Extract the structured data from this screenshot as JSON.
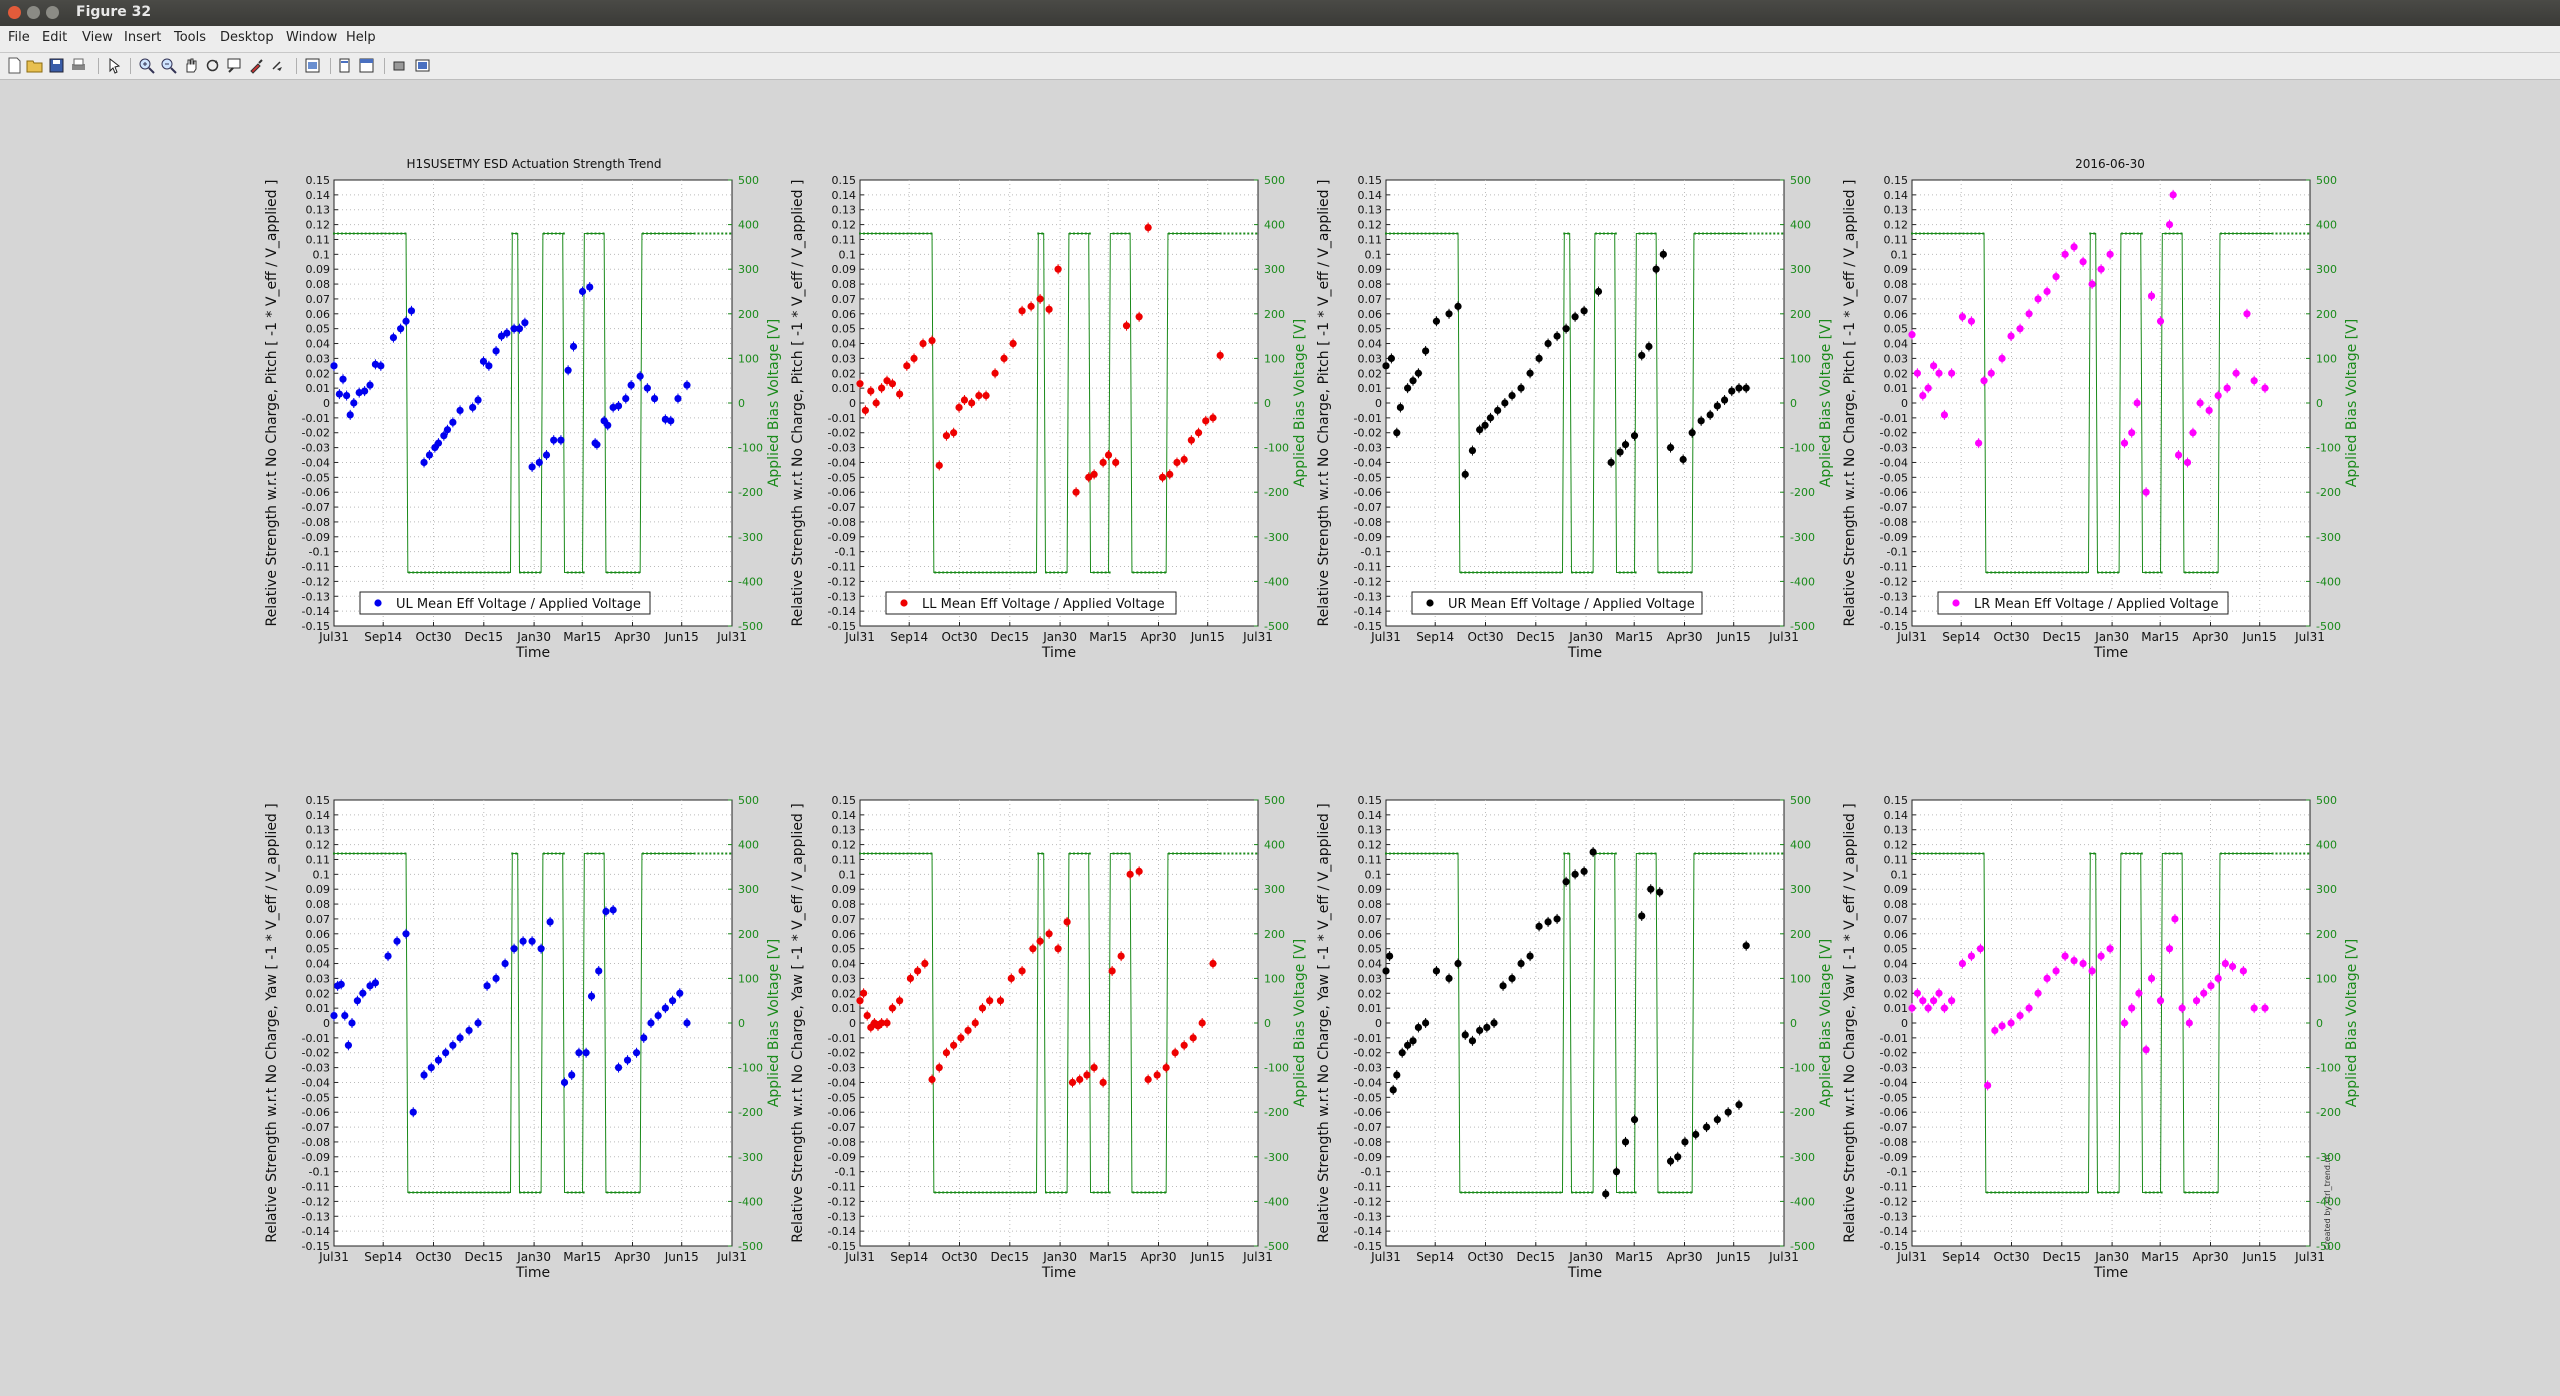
{
  "window": {
    "title": "Figure 32"
  },
  "menu": [
    "File",
    "Edit",
    "View",
    "Insert",
    "Tools",
    "Desktop",
    "Window",
    "Help"
  ],
  "toolbar": [
    "new-figure-icon",
    "open-icon",
    "save-icon",
    "print-icon",
    "pointer-icon",
    "zoom-in-icon",
    "zoom-out-icon",
    "pan-icon",
    "rotate-icon",
    "data-cursor-icon",
    "brush-icon",
    "link-icon",
    "colorbar-icon",
    "legend-icon",
    "hide-tools-icon",
    "dock-icon"
  ],
  "figure": {
    "suptitle": "H1SUSETMY ESD Actuation Strength Trend",
    "date": "2016-06-30",
    "side_note": "Created by ctrl_trend.m"
  },
  "chart_data": [
    {
      "type": "scatter",
      "row": "Pitch",
      "legend": "UL Mean Eff Voltage / Applied Voltage",
      "color": "#0000ee",
      "xlabel": "Time",
      "ylabel": "Relative Strength w.r.t No Charge, Pitch [ -1 * V_eff / V_applied ]",
      "y2label": "Applied Bias Voltage [V]",
      "xticks": [
        "Jul31",
        "Sep14",
        "Oct30",
        "Dec15",
        "Jan30",
        "Mar15",
        "Apr30",
        "Jun15",
        "Jul31"
      ],
      "ylim": [
        -0.15,
        0.15
      ],
      "y2lim": [
        -500,
        500
      ],
      "x": [
        0,
        3,
        5,
        7,
        9,
        11,
        14,
        17,
        20,
        23,
        26,
        33,
        37,
        40,
        43,
        50,
        53,
        56,
        58,
        61,
        63,
        66,
        70,
        77,
        80,
        83,
        86,
        90,
        93,
        96,
        100,
        103,
        106,
        110,
        114,
        118,
        122,
        126,
        130,
        133,
        138,
        142,
        145,
        146,
        150,
        152,
        155,
        158,
        162,
        165,
        170,
        174,
        178,
        184,
        187,
        191,
        196
      ],
      "y": [
        0.025,
        0.006,
        0.016,
        0.005,
        -0.008,
        0.0,
        0.007,
        0.008,
        0.012,
        0.026,
        0.025,
        0.044,
        0.05,
        0.055,
        0.062,
        -0.04,
        -0.035,
        -0.03,
        -0.027,
        -0.022,
        -0.018,
        -0.013,
        -0.005,
        -0.003,
        0.002,
        0.028,
        0.025,
        0.035,
        0.045,
        0.047,
        0.05,
        0.05,
        0.054,
        -0.043,
        -0.04,
        -0.035,
        -0.025,
        -0.025,
        0.022,
        0.038,
        0.075,
        0.078,
        -0.027,
        -0.028,
        -0.012,
        -0.015,
        -0.003,
        -0.002,
        0.003,
        0.012,
        0.018,
        0.01,
        0.003,
        -0.011,
        -0.012,
        0.003,
        0.012
      ]
    },
    {
      "type": "scatter",
      "row": "Pitch",
      "legend": "LL Mean Eff Voltage / Applied Voltage",
      "color": "#ee0000",
      "xlabel": "Time",
      "ylabel": "Relative Strength w.r.t No Charge, Pitch [ -1 * V_eff / V_applied ]",
      "y2label": "Applied Bias Voltage [V]",
      "xticks": [
        "Jul31",
        "Sep14",
        "Oct30",
        "Dec15",
        "Jan30",
        "Mar15",
        "Apr30",
        "Jun15",
        "Jul31"
      ],
      "ylim": [
        -0.15,
        0.15
      ],
      "y2lim": [
        -500,
        500
      ],
      "x": [
        0,
        3,
        6,
        9,
        12,
        15,
        18,
        22,
        26,
        30,
        35,
        40,
        44,
        48,
        52,
        55,
        58,
        62,
        66,
        70,
        75,
        80,
        85,
        90,
        95,
        100,
        105,
        110,
        120,
        127,
        130,
        135,
        138,
        142,
        148,
        155,
        160,
        168,
        172,
        176,
        180,
        184,
        188,
        192,
        196,
        200
      ],
      "y": [
        0.013,
        -0.005,
        0.008,
        0.0,
        0.01,
        0.015,
        0.013,
        0.006,
        0.025,
        0.03,
        0.04,
        0.042,
        -0.042,
        -0.022,
        -0.02,
        -0.003,
        0.002,
        0.0,
        0.005,
        0.005,
        0.02,
        0.03,
        0.04,
        0.062,
        0.065,
        0.07,
        0.063,
        0.09,
        -0.06,
        -0.05,
        -0.048,
        -0.04,
        -0.035,
        -0.04,
        0.052,
        0.058,
        0.118,
        -0.05,
        -0.048,
        -0.04,
        -0.038,
        -0.025,
        -0.02,
        -0.012,
        -0.01,
        0.032
      ]
    },
    {
      "type": "scatter",
      "row": "Pitch",
      "legend": "UR Mean Eff Voltage / Applied Voltage",
      "color": "#000000",
      "xlabel": "Time",
      "ylabel": "Relative Strength w.r.t No Charge, Pitch [ -1 * V_eff / V_applied ]",
      "y2label": "Applied Bias Voltage [V]",
      "xticks": [
        "Jul31",
        "Sep14",
        "Oct30",
        "Dec15",
        "Jan30",
        "Mar15",
        "Apr30",
        "Jun15",
        "Jul31"
      ],
      "ylim": [
        -0.15,
        0.15
      ],
      "y2lim": [
        -500,
        500
      ],
      "x": [
        0,
        3,
        6,
        8,
        12,
        15,
        18,
        22,
        28,
        35,
        40,
        44,
        48,
        52,
        55,
        58,
        62,
        66,
        70,
        75,
        80,
        85,
        90,
        95,
        100,
        105,
        110,
        118,
        125,
        130,
        133,
        138,
        142,
        146,
        150,
        154,
        158,
        165,
        170,
        175,
        180,
        184,
        188,
        192,
        196,
        200
      ],
      "y": [
        0.025,
        0.03,
        -0.02,
        -0.003,
        0.01,
        0.015,
        0.02,
        0.035,
        0.055,
        0.06,
        0.065,
        -0.048,
        -0.032,
        -0.018,
        -0.015,
        -0.01,
        -0.005,
        0.0,
        0.005,
        0.01,
        0.02,
        0.03,
        0.04,
        0.045,
        0.05,
        0.058,
        0.062,
        0.075,
        -0.04,
        -0.033,
        -0.028,
        -0.022,
        0.032,
        0.038,
        0.09,
        0.1,
        -0.03,
        -0.038,
        -0.02,
        -0.012,
        -0.008,
        -0.002,
        0.002,
        0.008,
        0.01,
        0.01
      ]
    },
    {
      "type": "scatter",
      "row": "Pitch",
      "legend": "LR Mean Eff Voltage / Applied Voltage",
      "color": "#ff00ff",
      "xlabel": "Time",
      "ylabel": "Relative Strength w.r.t No Charge, Pitch [ -1 * V_eff / V_applied ]",
      "y2label": "Applied Bias Voltage [V]",
      "xticks": [
        "Jul31",
        "Sep14",
        "Oct30",
        "Dec15",
        "Jan30",
        "Mar15",
        "Apr30",
        "Jun15",
        "Jul31"
      ],
      "ylim": [
        -0.15,
        0.15
      ],
      "y2lim": [
        -500,
        500
      ],
      "x": [
        0,
        3,
        6,
        9,
        12,
        15,
        18,
        22,
        28,
        33,
        37,
        40,
        44,
        50,
        55,
        60,
        65,
        70,
        75,
        80,
        85,
        90,
        95,
        100,
        105,
        110,
        118,
        122,
        125,
        130,
        133,
        138,
        143,
        145,
        148,
        153,
        156,
        160,
        165,
        170,
        175,
        180,
        186,
        190,
        196
      ],
      "y": [
        0.046,
        0.02,
        0.005,
        0.01,
        0.025,
        0.02,
        -0.008,
        0.02,
        0.058,
        0.055,
        -0.027,
        0.015,
        0.02,
        0.03,
        0.045,
        0.05,
        0.06,
        0.07,
        0.075,
        0.085,
        0.1,
        0.105,
        0.095,
        0.08,
        0.09,
        0.1,
        -0.027,
        -0.02,
        0.0,
        -0.06,
        0.072,
        0.055,
        0.12,
        0.14,
        -0.035,
        -0.04,
        -0.02,
        0.0,
        -0.005,
        0.005,
        0.01,
        0.02,
        0.06,
        0.015,
        0.01
      ]
    },
    {
      "type": "scatter",
      "row": "Yaw",
      "legend": "",
      "color": "#0000ee",
      "xlabel": "Time",
      "ylabel": "Relative Strength w.r.t No Charge, Yaw [ -1 * V_eff / V_applied ]",
      "y2label": "Applied Bias Voltage [V]",
      "xticks": [
        "Jul31",
        "Sep14",
        "Oct30",
        "Dec15",
        "Jan30",
        "Mar15",
        "Apr30",
        "Jun15",
        "Jul31"
      ],
      "ylim": [
        -0.15,
        0.15
      ],
      "y2lim": [
        -500,
        500
      ],
      "x": [
        0,
        2,
        4,
        6,
        8,
        10,
        13,
        16,
        20,
        23,
        30,
        35,
        40,
        44,
        50,
        54,
        58,
        62,
        66,
        70,
        75,
        80,
        85,
        90,
        95,
        100,
        105,
        110,
        115,
        120,
        128,
        132,
        136,
        140,
        143,
        147,
        151,
        155,
        158,
        163,
        168,
        172,
        176,
        180,
        184,
        188,
        192,
        196
      ],
      "y": [
        0.005,
        0.025,
        0.026,
        0.005,
        -0.015,
        0.0,
        0.015,
        0.02,
        0.025,
        0.027,
        0.045,
        0.055,
        0.06,
        -0.06,
        -0.035,
        -0.03,
        -0.025,
        -0.02,
        -0.015,
        -0.01,
        -0.005,
        0.0,
        0.025,
        0.03,
        0.04,
        0.05,
        0.055,
        0.055,
        0.05,
        0.068,
        -0.04,
        -0.035,
        -0.02,
        -0.02,
        0.018,
        0.035,
        0.075,
        0.076,
        -0.03,
        -0.025,
        -0.02,
        -0.01,
        0.0,
        0.005,
        0.01,
        0.015,
        0.02,
        0.0
      ]
    },
    {
      "type": "scatter",
      "row": "Yaw",
      "legend": "",
      "color": "#ee0000",
      "xlabel": "Time",
      "ylabel": "Relative Strength w.r.t No Charge, Yaw [ -1 * V_eff / V_applied ]",
      "y2label": "Applied Bias Voltage [V]",
      "xticks": [
        "Jul31",
        "Sep14",
        "Oct30",
        "Dec15",
        "Jan30",
        "Mar15",
        "Apr30",
        "Jun15",
        "Jul31"
      ],
      "ylim": [
        -0.15,
        0.15
      ],
      "y2lim": [
        -500,
        500
      ],
      "x": [
        0,
        2,
        4,
        6,
        8,
        10,
        12,
        15,
        18,
        22,
        28,
        32,
        36,
        40,
        44,
        48,
        52,
        56,
        60,
        64,
        68,
        72,
        78,
        84,
        90,
        96,
        100,
        105,
        110,
        115,
        118,
        122,
        126,
        130,
        135,
        140,
        145,
        150,
        155,
        160,
        165,
        170,
        175,
        180,
        185,
        190,
        196
      ],
      "y": [
        0.015,
        0.02,
        0.005,
        -0.003,
        0.0,
        -0.002,
        0.0,
        0.0,
        0.01,
        0.015,
        0.03,
        0.035,
        0.04,
        -0.038,
        -0.03,
        -0.02,
        -0.015,
        -0.01,
        -0.005,
        0.0,
        0.01,
        0.015,
        0.015,
        0.03,
        0.035,
        0.05,
        0.055,
        0.06,
        0.05,
        0.068,
        -0.04,
        -0.038,
        -0.035,
        -0.03,
        -0.04,
        0.035,
        0.045,
        0.1,
        0.102,
        -0.038,
        -0.035,
        -0.03,
        -0.02,
        -0.015,
        -0.01,
        0.0,
        0.04
      ]
    },
    {
      "type": "scatter",
      "row": "Yaw",
      "legend": "",
      "color": "#000000",
      "xlabel": "Time",
      "ylabel": "Relative Strength w.r.t No Charge, Yaw [ -1 * V_eff / V_applied ]",
      "y2label": "Applied Bias Voltage [V]",
      "xticks": [
        "Jul31",
        "Sep14",
        "Oct30",
        "Dec15",
        "Jan30",
        "Mar15",
        "Apr30",
        "Jun15",
        "Jul31"
      ],
      "ylim": [
        -0.15,
        0.15
      ],
      "y2lim": [
        -500,
        500
      ],
      "x": [
        0,
        2,
        4,
        6,
        9,
        12,
        15,
        18,
        22,
        28,
        35,
        40,
        44,
        48,
        52,
        56,
        60,
        65,
        70,
        75,
        80,
        85,
        90,
        95,
        100,
        105,
        110,
        115,
        122,
        128,
        133,
        138,
        142,
        147,
        152,
        158,
        162,
        166,
        172,
        178,
        184,
        190,
        196,
        200
      ],
      "y": [
        0.035,
        0.045,
        -0.045,
        -0.035,
        -0.02,
        -0.015,
        -0.012,
        -0.003,
        0.0,
        0.035,
        0.03,
        0.04,
        -0.008,
        -0.012,
        -0.005,
        -0.003,
        0.0,
        0.025,
        0.03,
        0.04,
        0.045,
        0.065,
        0.068,
        0.07,
        0.095,
        0.1,
        0.102,
        0.115,
        -0.115,
        -0.1,
        -0.08,
        -0.065,
        0.072,
        0.09,
        0.088,
        -0.093,
        -0.09,
        -0.08,
        -0.075,
        -0.07,
        -0.065,
        -0.06,
        -0.055,
        0.052
      ]
    },
    {
      "type": "scatter",
      "row": "Yaw",
      "legend": "",
      "color": "#ff00ff",
      "xlabel": "Time",
      "ylabel": "Relative Strength w.r.t No Charge, Yaw [ -1 * V_eff / V_applied ]",
      "y2label": "Applied Bias Voltage [V]",
      "xticks": [
        "Jul31",
        "Sep14",
        "Oct30",
        "Dec15",
        "Jan30",
        "Mar15",
        "Apr30",
        "Jun15",
        "Jul31"
      ],
      "ylim": [
        -0.15,
        0.15
      ],
      "y2lim": [
        -500,
        500
      ],
      "x": [
        0,
        3,
        6,
        9,
        12,
        15,
        18,
        22,
        28,
        33,
        38,
        42,
        46,
        50,
        55,
        60,
        65,
        70,
        75,
        80,
        85,
        90,
        95,
        100,
        105,
        110,
        118,
        122,
        126,
        130,
        133,
        138,
        143,
        146,
        150,
        154,
        158,
        162,
        166,
        170,
        174,
        178,
        184,
        190,
        196
      ],
      "y": [
        0.01,
        0.02,
        0.015,
        0.01,
        0.015,
        0.02,
        0.01,
        0.015,
        0.04,
        0.045,
        0.05,
        -0.042,
        -0.005,
        -0.002,
        0.0,
        0.005,
        0.01,
        0.02,
        0.03,
        0.035,
        0.045,
        0.042,
        0.04,
        0.035,
        0.045,
        0.05,
        0.0,
        0.01,
        0.02,
        -0.018,
        0.03,
        0.015,
        0.05,
        0.07,
        0.01,
        0.0,
        0.015,
        0.02,
        0.025,
        0.03,
        0.04,
        0.038,
        0.035,
        0.01,
        0.01
      ]
    }
  ],
  "bias_voltage": {
    "x": [
      0,
      40,
      41,
      98,
      99,
      102,
      103,
      115,
      116,
      127,
      128,
      138,
      139,
      150,
      151,
      170,
      171,
      200
    ],
    "y": [
      380,
      380,
      -380,
      -380,
      380,
      380,
      -380,
      -380,
      380,
      380,
      -380,
      -380,
      380,
      380,
      -380,
      -380,
      380,
      380
    ]
  }
}
